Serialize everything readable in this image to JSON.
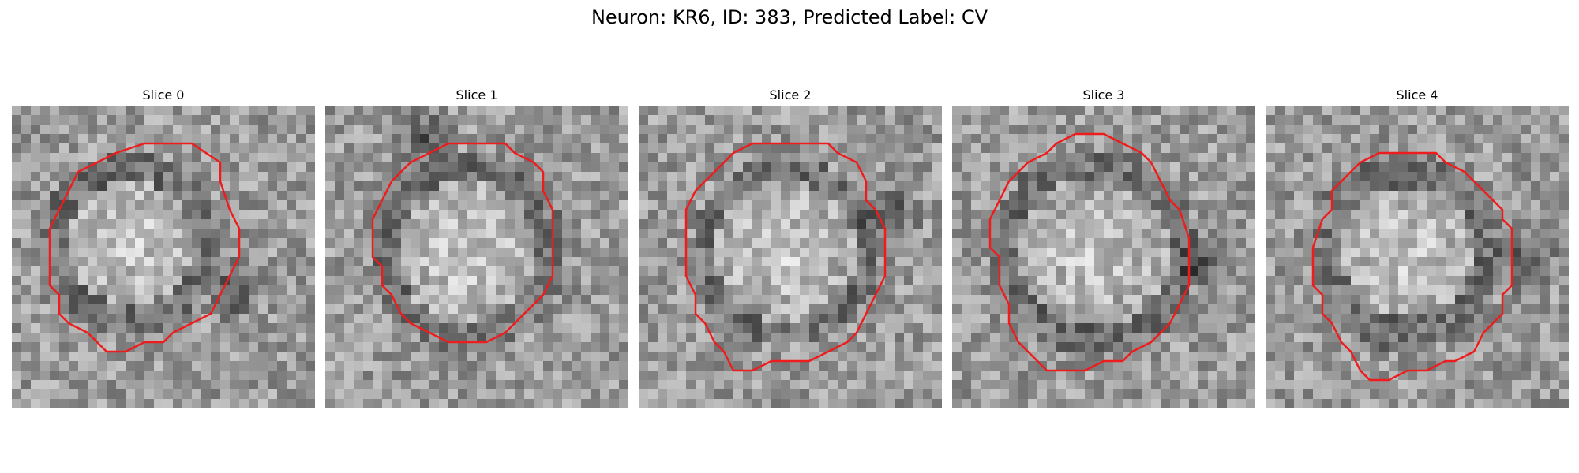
{
  "figure": {
    "title": "Neuron: KR6, ID: 383, Predicted Label: CV"
  },
  "contour_color": "#ee1c1c",
  "slices": [
    {
      "label": "Slice 0"
    },
    {
      "label": "Slice 1"
    },
    {
      "label": "Slice 2"
    },
    {
      "label": "Slice 3"
    },
    {
      "label": "Slice 4"
    }
  ]
}
